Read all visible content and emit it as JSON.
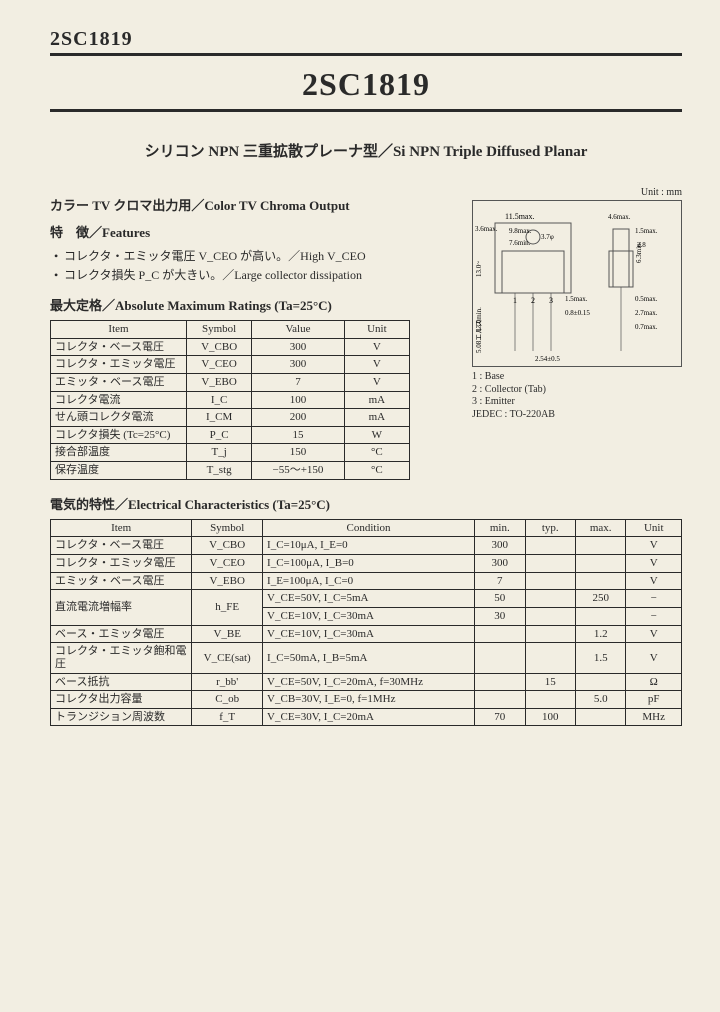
{
  "header": {
    "part_small": "2SC1819"
  },
  "title": "2SC1819",
  "subtitle": "シリコン NPN 三重拡散プレーナ型／Si NPN Triple Diffused Planar",
  "app_heading": "カラー TV クロマ出力用／Color TV Chroma Output",
  "features_heading": "特　徴／Features",
  "features": [
    "コレクタ・エミッタ電圧 V_CEO が高い。／High V_CEO",
    "コレクタ損失 P_C が大きい。／Large collector dissipation"
  ],
  "unit_note": "Unit : mm",
  "amr": {
    "heading": "最大定格／Absolute Maximum Ratings (Ta=25°C)",
    "head": [
      "Item",
      "Symbol",
      "Value",
      "Unit"
    ],
    "rows": [
      [
        "コレクタ・ベース電圧",
        "V_CBO",
        "300",
        "V"
      ],
      [
        "コレクタ・エミッタ電圧",
        "V_CEO",
        "300",
        "V"
      ],
      [
        "エミッタ・ベース電圧",
        "V_EBO",
        "7",
        "V"
      ],
      [
        "コレクタ電流",
        "I_C",
        "100",
        "mA"
      ],
      [
        "せん頭コレクタ電流",
        "I_CM",
        "200",
        "mA"
      ],
      [
        "コレクタ損失 (Tc=25°C)",
        "P_C",
        "15",
        "W"
      ],
      [
        "接合部温度",
        "T_j",
        "150",
        "°C"
      ],
      [
        "保存温度",
        "T_stg",
        "−55〜+150",
        "°C"
      ]
    ]
  },
  "pkg": {
    "dims": {
      "w_max": "11.5max.",
      "w_inner": "9.8max.",
      "w_pitch": "7.6min.",
      "h_body": "13.0~",
      "h_tab": "3.6max.",
      "hole": "3.7φ",
      "side_w": "4.6max.",
      "side_t": "1.5max.",
      "side_h": "6.3min.",
      "side_s": "2.8",
      "lead_p1": "1.5max.",
      "lead_p2": "0.8±0.15",
      "lead_p3": "2.54±0.5",
      "lead_t1": "0.5max.",
      "lead_t2": "2.7max.",
      "lead_t3": "0.7max.",
      "lead_l": "13.0min.",
      "stamp": "5.08エルス"
    },
    "pins": "1 2 3",
    "legend": [
      "1 : Base",
      "2 : Collector (Tab)",
      "3 : Emitter",
      "JEDEC : TO-220AB"
    ]
  },
  "ec": {
    "heading": "電気的特性／Electrical Characteristics (Ta=25°C)",
    "head": [
      "Item",
      "Symbol",
      "Condition",
      "min.",
      "typ.",
      "max.",
      "Unit"
    ],
    "rows": [
      {
        "item": "コレクタ・ベース電圧",
        "sym": "V_CBO",
        "cond": "I_C=10μA, I_E=0",
        "min": "300",
        "typ": "",
        "max": "",
        "unit": "V"
      },
      {
        "item": "コレクタ・エミッタ電圧",
        "sym": "V_CEO",
        "cond": "I_C=100μA, I_B=0",
        "min": "300",
        "typ": "",
        "max": "",
        "unit": "V"
      },
      {
        "item": "エミッタ・ベース電圧",
        "sym": "V_EBO",
        "cond": "I_E=100μA, I_C=0",
        "min": "7",
        "typ": "",
        "max": "",
        "unit": "V"
      },
      {
        "item": "直流電流増幅率",
        "sym": "h_FE",
        "cond": "V_CE=50V, I_C=5mA",
        "min": "50",
        "typ": "",
        "max": "250",
        "unit": "−",
        "span": 2
      },
      {
        "item": "",
        "sym": "",
        "cond": "V_CE=10V, I_C=30mA",
        "min": "30",
        "typ": "",
        "max": "",
        "unit": "−"
      },
      {
        "item": "ベース・エミッタ電圧",
        "sym": "V_BE",
        "cond": "V_CE=10V, I_C=30mA",
        "min": "",
        "typ": "",
        "max": "1.2",
        "unit": "V"
      },
      {
        "item": "コレクタ・エミッタ飽和電圧",
        "sym": "V_CE(sat)",
        "cond": "I_C=50mA, I_B=5mA",
        "min": "",
        "typ": "",
        "max": "1.5",
        "unit": "V"
      },
      {
        "item": "ベース抵抗",
        "sym": "r_bb'",
        "cond": "V_CE=50V, I_C=20mA, f=30MHz",
        "min": "",
        "typ": "15",
        "max": "",
        "unit": "Ω"
      },
      {
        "item": "コレクタ出力容量",
        "sym": "C_ob",
        "cond": "V_CB=30V, I_E=0, f=1MHz",
        "min": "",
        "typ": "",
        "max": "5.0",
        "unit": "pF"
      },
      {
        "item": "トランジション周波数",
        "sym": "f_T",
        "cond": "V_CE=30V, I_C=20mA",
        "min": "70",
        "typ": "100",
        "max": "",
        "unit": "MHz"
      }
    ]
  }
}
